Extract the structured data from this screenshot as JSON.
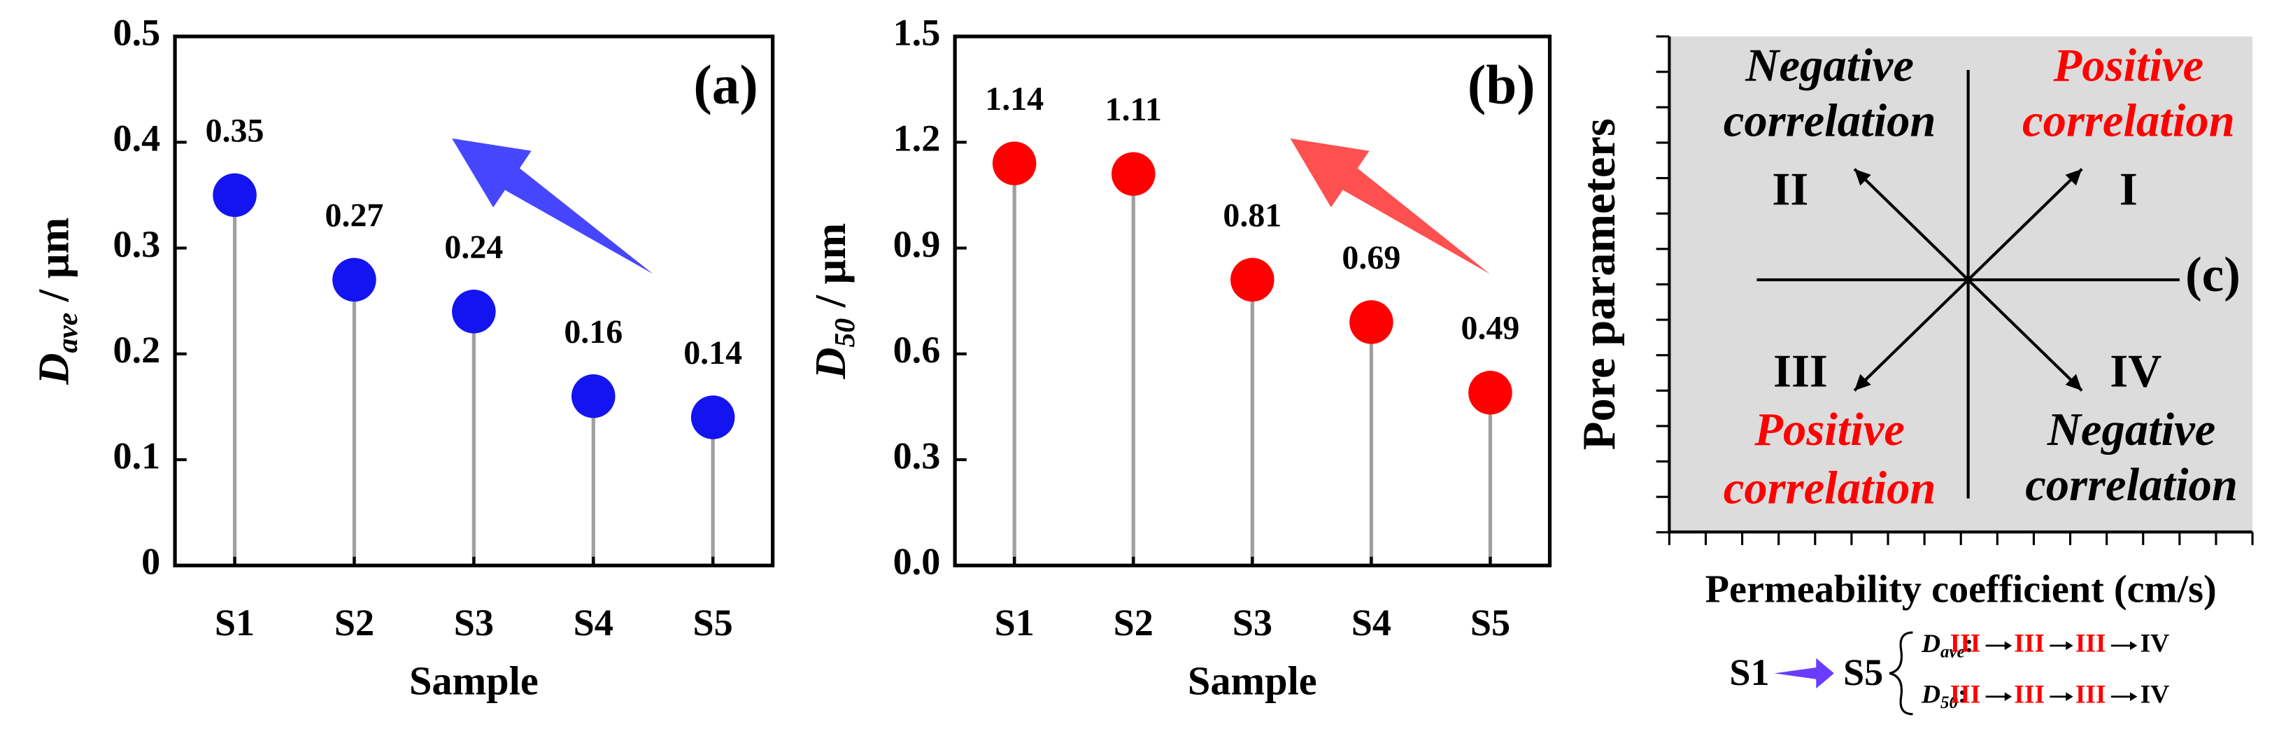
{
  "chart_data": [
    {
      "type": "stem",
      "annotation": "(a)",
      "xlabel": "Sample",
      "ylabel": "D",
      "ylabel_sub": "ave",
      "ylabel_unit": " / μm",
      "categories": [
        "S1",
        "S2",
        "S3",
        "S4",
        "S5"
      ],
      "values": [
        0.35,
        0.27,
        0.24,
        0.16,
        0.14
      ],
      "color": "#1414f0",
      "ylim": [
        0,
        0.5
      ],
      "yticks": [
        0,
        0.1,
        0.2,
        0.3,
        0.4,
        0.5
      ]
    },
    {
      "type": "stem",
      "annotation": "(b)",
      "xlabel": "Sample",
      "ylabel": "D",
      "ylabel_sub": "50",
      "ylabel_unit": "  / μm",
      "categories": [
        "S1",
        "S2",
        "S3",
        "S4",
        "S5"
      ],
      "values": [
        1.14,
        1.11,
        0.81,
        0.69,
        0.49
      ],
      "color": "#ff0000",
      "ylim": [
        0,
        1.5
      ],
      "yticks": [
        {
          "value": 0,
          "label": "0.0"
        },
        0.3,
        0.6,
        0.9,
        1.2,
        1.5
      ]
    }
  ],
  "diagram": {
    "annotation": "(c)",
    "ylabel": "Pore parameters",
    "xlabel": "Permeability coefficient (cm/s)",
    "quadrants": [
      {
        "numeral": "II",
        "lines": [
          "Negative",
          "correlation"
        ],
        "color": "#000000"
      },
      {
        "numeral": "I",
        "lines": [
          "Positive",
          "correlation"
        ],
        "color": "#ff0000"
      },
      {
        "numeral": "III",
        "lines": [
          "Positive",
          "correlation"
        ],
        "color": "#ff0000"
      },
      {
        "numeral": "IV",
        "lines": [
          "Negative",
          "correlation"
        ],
        "color": "#000000"
      }
    ],
    "legend": {
      "from": "S1",
      "to": "S5",
      "rows": [
        {
          "symbol": "D",
          "sub": "ave",
          "separator": ":",
          "sequence": [
            "III",
            "III",
            "III",
            "IV"
          ]
        },
        {
          "symbol": "D",
          "sub": "50",
          "separator": ":",
          "sequence": [
            "III",
            "III",
            "III",
            "IV"
          ]
        }
      ]
    }
  }
}
